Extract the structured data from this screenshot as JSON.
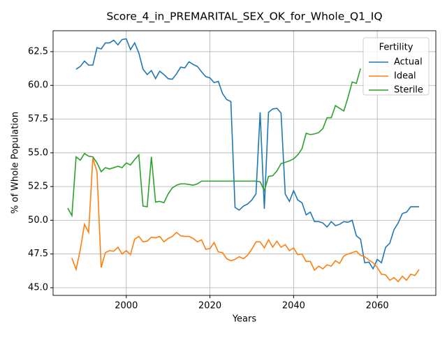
{
  "chart_data": {
    "type": "line",
    "title": "Score_4_in_PREMARITAL_SEX_OK_for_Whole_Q1_IQ",
    "x_label": "Years",
    "y_label": "% of Whole Population",
    "legend_title": "Fertility",
    "legend": "upper right",
    "grid": true,
    "xlim": [
      1982.5,
      2074
    ],
    "ylim": [
      44.43,
      64.05
    ],
    "xticks": [
      2000,
      2020,
      2040,
      2060
    ],
    "yticks": [
      {
        "value": 45,
        "label": "45.0"
      },
      47.5,
      {
        "value": 50,
        "label": "50.0"
      },
      52.5,
      {
        "value": 55,
        "label": "55.0"
      },
      57.5,
      {
        "value": 60,
        "label": "60.0"
      },
      62.5
    ],
    "x": [
      1986,
      1987,
      1988,
      1989,
      1990,
      1991,
      1992,
      1993,
      1994,
      1995,
      1996,
      1997,
      1998,
      1999,
      2000,
      2001,
      2002,
      2003,
      2004,
      2005,
      2006,
      2007,
      2008,
      2009,
      2010,
      2011,
      2012,
      2013,
      2014,
      2015,
      2016,
      2017,
      2018,
      2019,
      2020,
      2021,
      2022,
      2023,
      2024,
      2025,
      2026,
      2027,
      2028,
      2029,
      2030,
      2031,
      2032,
      2033,
      2034,
      2035,
      2036,
      2037,
      2038,
      2039,
      2040,
      2041,
      2042,
      2043,
      2044,
      2045,
      2046,
      2047,
      2048,
      2049,
      2050,
      2051,
      2052,
      2053,
      2054,
      2055,
      2056,
      2057,
      2058,
      2059,
      2060,
      2061,
      2062,
      2063,
      2064,
      2065,
      2066,
      2067,
      2068,
      2069,
      2070
    ],
    "series": [
      {
        "name": "Actual",
        "color": "#1f77b4",
        "values": [
          null,
          null,
          61.2,
          61.4,
          61.8,
          61.5,
          61.5,
          62.8,
          62.7,
          63.15,
          63.15,
          63.35,
          63.0,
          63.4,
          63.45,
          62.65,
          63.15,
          62.4,
          61.2,
          60.8,
          61.1,
          60.5,
          61.05,
          60.8,
          60.5,
          60.45,
          60.85,
          61.35,
          61.3,
          61.75,
          61.55,
          61.4,
          61.0,
          60.65,
          60.55,
          60.2,
          60.3,
          59.4,
          58.95,
          58.8,
          50.95,
          50.75,
          51.05,
          51.2,
          51.5,
          51.95,
          58.0,
          50.85,
          58.0,
          58.25,
          58.3,
          57.95,
          51.95,
          51.4,
          52.2,
          51.5,
          51.3,
          50.4,
          50.6,
          49.9,
          49.9,
          49.8,
          49.5,
          49.9,
          49.6,
          49.7,
          49.9,
          49.85,
          50.0,
          48.85,
          48.6,
          46.85,
          46.9,
          46.4,
          47.1,
          46.85,
          48.0,
          48.3,
          49.3,
          49.8,
          50.5,
          50.6,
          51.0,
          51.0,
          51.0
        ]
      },
      {
        "name": "Ideal",
        "color": "#ff7f0e",
        "values": [
          null,
          47.2,
          46.35,
          47.8,
          49.7,
          49.1,
          54.6,
          53.6,
          46.5,
          47.6,
          47.75,
          47.7,
          48.0,
          47.5,
          47.75,
          47.45,
          48.6,
          48.8,
          48.4,
          48.45,
          48.75,
          48.7,
          48.8,
          48.4,
          48.65,
          48.8,
          49.1,
          48.85,
          48.8,
          48.8,
          48.65,
          48.4,
          48.55,
          47.85,
          47.9,
          48.35,
          47.65,
          47.6,
          47.15,
          47.0,
          47.1,
          47.3,
          47.15,
          47.4,
          47.85,
          48.4,
          48.4,
          47.95,
          48.55,
          48.0,
          48.45,
          48.0,
          48.2,
          47.75,
          47.95,
          47.45,
          47.5,
          46.95,
          46.95,
          46.3,
          46.6,
          46.4,
          46.7,
          46.6,
          47.0,
          46.8,
          47.35,
          47.5,
          47.6,
          47.7,
          47.4,
          47.3,
          47.05,
          46.85,
          46.5,
          46.0,
          45.95,
          45.55,
          45.75,
          45.45,
          45.85,
          45.55,
          46.0,
          45.9,
          46.35
        ]
      },
      {
        "name": "Sterile",
        "color": "#2ca02c",
        "values": [
          50.9,
          50.35,
          54.7,
          54.45,
          54.95,
          54.75,
          54.7,
          54.25,
          53.6,
          53.9,
          53.8,
          53.9,
          54.0,
          53.9,
          54.25,
          54.1,
          54.5,
          54.85,
          51.05,
          51.0,
          54.7,
          51.35,
          51.4,
          51.3,
          51.95,
          52.4,
          52.6,
          52.7,
          52.7,
          52.65,
          52.6,
          52.7,
          52.9,
          52.9,
          52.9,
          52.9,
          52.9,
          52.9,
          52.9,
          52.9,
          52.9,
          52.9,
          52.9,
          52.9,
          52.9,
          52.9,
          52.85,
          52.2,
          53.25,
          53.3,
          53.65,
          54.2,
          54.3,
          54.4,
          54.55,
          54.85,
          55.3,
          56.45,
          56.35,
          56.4,
          56.5,
          56.8,
          57.6,
          57.6,
          58.5,
          58.3,
          58.1,
          59.1,
          60.25,
          60.15,
          61.25,
          null,
          null,
          null,
          null,
          null,
          null,
          null,
          null,
          null,
          null,
          null,
          null,
          null,
          null
        ]
      }
    ]
  }
}
